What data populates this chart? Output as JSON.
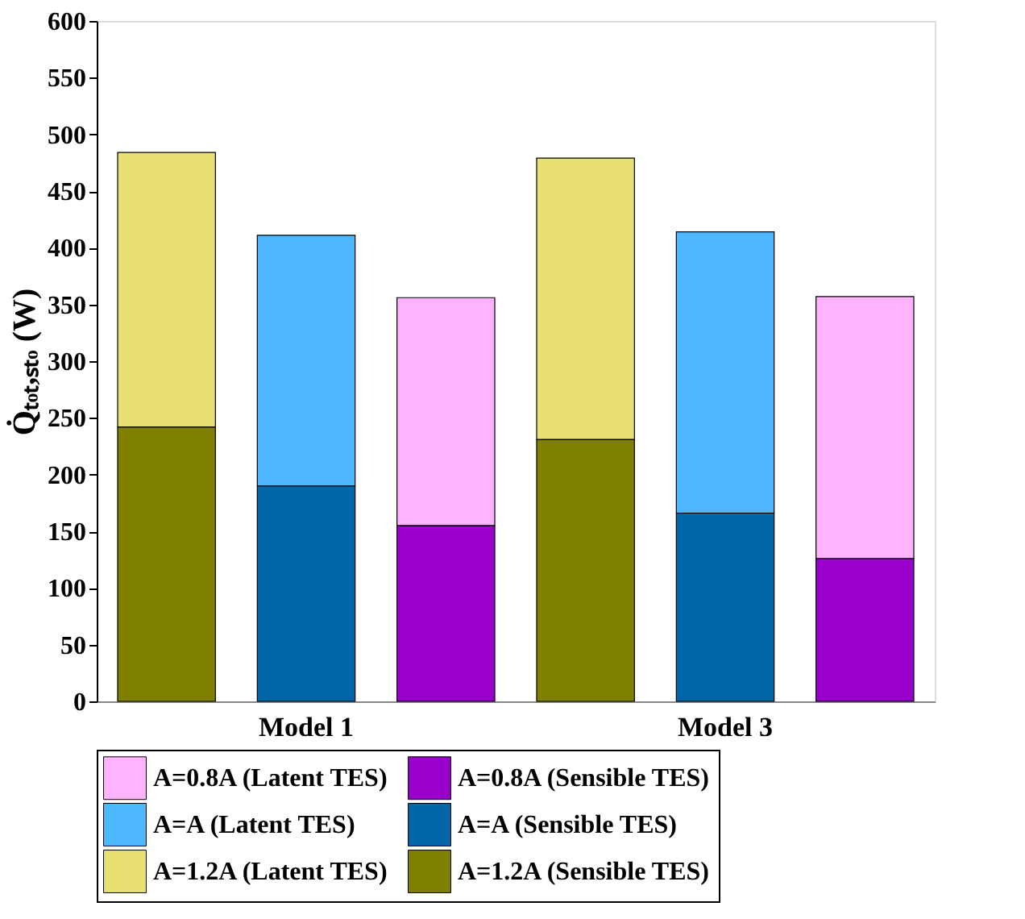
{
  "chart_data": {
    "type": "bar",
    "stacked": true,
    "ylabel": "Q̇ₜₒₜ,ₛₜₒ (W)",
    "categories": [
      null,
      "Model 1",
      null,
      null,
      "Model 3",
      null
    ],
    "series": [
      {
        "name": "A=0.8A (Sensible TES)",
        "color": "#9900cc",
        "values": [
          null,
          null,
          155,
          null,
          null,
          126
        ]
      },
      {
        "name": "A=0.8A (Latent TES)",
        "color": "#ffb3ff",
        "values": [
          null,
          null,
          201,
          null,
          null,
          231
        ]
      },
      {
        "name": "A=A (Sensible TES)",
        "color": "#0066a8",
        "values": [
          null,
          190,
          null,
          null,
          166,
          null
        ]
      },
      {
        "name": "A=A (Latent TES)",
        "color": "#4db8ff",
        "values": [
          null,
          221,
          null,
          null,
          248,
          null
        ]
      },
      {
        "name": "A=1.2A (Sensible TES)",
        "color": "#808000",
        "values": [
          242,
          null,
          null,
          231,
          null,
          null
        ]
      },
      {
        "name": "A=1.2A (Latent TES)",
        "color": "#e8e070",
        "values": [
          242,
          null,
          null,
          248,
          null,
          null
        ]
      }
    ],
    "ylim": [
      0,
      600
    ],
    "yticks": [
      0,
      50,
      100,
      150,
      200,
      250,
      300,
      350,
      400,
      450,
      500,
      550,
      600
    ],
    "legend": "bottom"
  }
}
